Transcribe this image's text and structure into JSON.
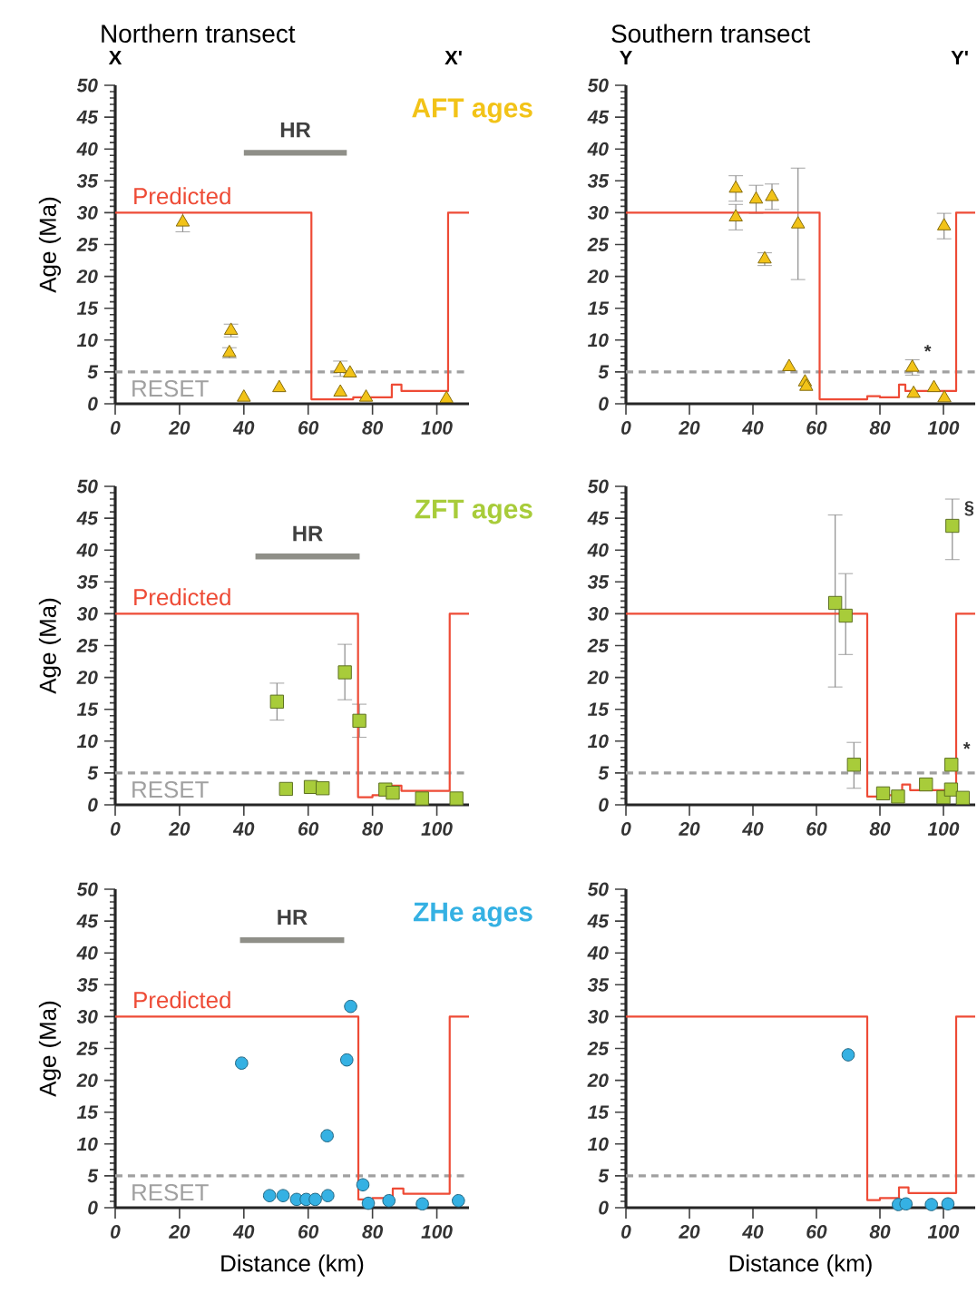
{
  "chart_data": [
    {
      "type": "scatter",
      "title": "Northern transect",
      "ylabel": "Age (Ma)",
      "xlim": [
        0,
        110
      ],
      "xticks": [
        0,
        20,
        40,
        60,
        80,
        100
      ],
      "ylim": [
        0,
        50
      ],
      "yticks": [
        0,
        5,
        10,
        15,
        20,
        25,
        30,
        35,
        40,
        45,
        50
      ],
      "marker": "triangle",
      "annotations": [
        "X",
        "X'"
      ],
      "ref_lines": [
        {
          "axis": "y",
          "value": 5,
          "label": "RESET",
          "color": "#a0a0a0",
          "line_style": "dashed"
        }
      ],
      "series": [
        {
          "type": "line",
          "marker": "none",
          "name": "Predicted",
          "color": "#ee4b36",
          "x": [
            0,
            61,
            61,
            74,
            74,
            86,
            86,
            89,
            89,
            103.5,
            103.5,
            110
          ],
          "values": [
            30,
            30,
            0.7,
            0.7,
            1,
            1,
            3,
            3,
            2,
            2,
            30,
            30
          ]
        },
        {
          "type": "line",
          "marker": "none",
          "name": "HR",
          "color": "#8f8f88",
          "x": [
            40,
            72
          ],
          "values": [
            39.4,
            39.4
          ]
        },
        {
          "name": "AFT ages",
          "color": "#f2c318",
          "x": [
            21,
            36,
            35.5,
            40,
            51,
            70,
            73,
            70,
            78,
            103
          ],
          "values": [
            28.5,
            11.5,
            8,
            1,
            2.5,
            5.5,
            4.8,
            1.8,
            1,
            0.8
          ],
          "errors": [
            1.5,
            1,
            0.8,
            null,
            null,
            1.2,
            null,
            null,
            null,
            null
          ]
        }
      ]
    },
    {
      "type": "scatter",
      "title": "Southern transect",
      "xlim": [
        0,
        110
      ],
      "xticks": [
        0,
        20,
        40,
        60,
        80,
        100
      ],
      "ylim": [
        0,
        50
      ],
      "yticks": [
        0,
        5,
        10,
        15,
        20,
        25,
        30,
        35,
        40,
        45,
        50
      ],
      "marker": "triangle",
      "annotations": [
        "Y",
        "Y'",
        {
          "text": "*",
          "x": 90.2,
          "y": 5.7
        }
      ],
      "ref_lines": [
        {
          "axis": "y",
          "value": 5,
          "color": "#a0a0a0",
          "line_style": "dashed"
        }
      ],
      "series": [
        {
          "type": "line",
          "marker": "none",
          "color": "#ee4b36",
          "x": [
            0,
            61,
            61,
            76,
            76,
            80,
            80,
            86,
            86,
            88,
            88,
            104,
            104,
            110
          ],
          "values": [
            30,
            30,
            0.7,
            0.7,
            1.2,
            1.2,
            1,
            1,
            3,
            3,
            2,
            2,
            30,
            30
          ]
        },
        {
          "color": "#f2c318",
          "x": [
            34.6,
            34.6,
            41,
            46,
            43.7,
            54.2,
            51.4,
            56.4,
            56.8,
            90.2,
            90.6,
            97,
            100.3,
            100.2
          ],
          "values": [
            33.8,
            29.3,
            32.1,
            32.5,
            22.7,
            28.2,
            5.8,
            3.4,
            2.7,
            5.7,
            1.6,
            2.5,
            0.9,
            27.9
          ],
          "errors": [
            2,
            2,
            2.2,
            2,
            1,
            [
              19.5,
              37
            ],
            null,
            null,
            null,
            1.2,
            null,
            null,
            null,
            2
          ]
        }
      ]
    },
    {
      "type": "scatter",
      "ylabel": "Age (Ma)",
      "xlim": [
        0,
        110
      ],
      "xticks": [
        0,
        20,
        40,
        60,
        80,
        100
      ],
      "ylim": [
        0,
        50
      ],
      "yticks": [
        0,
        5,
        10,
        15,
        20,
        25,
        30,
        35,
        40,
        45,
        50
      ],
      "marker": "square",
      "ref_lines": [
        {
          "axis": "y",
          "value": 5,
          "label": "RESET",
          "color": "#a0a0a0",
          "line_style": "dashed"
        }
      ],
      "series": [
        {
          "type": "line",
          "marker": "none",
          "name": "Predicted",
          "color": "#ee4b36",
          "x": [
            0,
            75.5,
            75.5,
            80,
            80,
            86,
            86,
            89,
            89,
            104,
            104,
            110
          ],
          "values": [
            30,
            30,
            1.2,
            1.2,
            1.5,
            1.5,
            3,
            3,
            2.2,
            2.2,
            30,
            30
          ]
        },
        {
          "type": "line",
          "marker": "none",
          "name": "HR",
          "color": "#8f8f88",
          "x": [
            43.6,
            76
          ],
          "values": [
            39,
            39
          ]
        },
        {
          "name": "ZFT ages",
          "color": "#a8cc3a",
          "x": [
            50.3,
            71.4,
            75.9,
            53.1,
            60.8,
            64.5,
            84,
            86.3,
            95.4,
            106.1
          ],
          "values": [
            16.2,
            20.8,
            13.2,
            2.5,
            2.8,
            2.6,
            2.4,
            1.9,
            1,
            1
          ],
          "errors": [
            2.9,
            [
              16.5,
              25.2
            ],
            [
              10.6,
              15.8
            ],
            null,
            null,
            null,
            null,
            null,
            null,
            null
          ]
        }
      ]
    },
    {
      "type": "scatter",
      "xlim": [
        0,
        110
      ],
      "xticks": [
        0,
        20,
        40,
        60,
        80,
        100
      ],
      "ylim": [
        0,
        50
      ],
      "yticks": [
        0,
        5,
        10,
        15,
        20,
        25,
        30,
        35,
        40,
        45,
        50
      ],
      "marker": "square",
      "annotations": [
        {
          "text": "§",
          "x": 102.8,
          "y": 43.8
        },
        {
          "text": "*",
          "x": 102.5,
          "y": 6.3
        }
      ],
      "ref_lines": [
        {
          "axis": "y",
          "value": 5,
          "color": "#a0a0a0",
          "line_style": "dashed"
        }
      ],
      "series": [
        {
          "type": "line",
          "marker": "none",
          "color": "#ee4b36",
          "x": [
            0,
            76,
            76,
            81,
            81,
            87,
            87,
            89.5,
            89.5,
            104,
            104,
            110
          ],
          "values": [
            30,
            30,
            1.3,
            1.3,
            1.5,
            1.5,
            3.2,
            3.2,
            2.3,
            2.3,
            30,
            30
          ]
        },
        {
          "color": "#a8cc3a",
          "x": [
            65.9,
            69.2,
            71.8,
            102.8,
            102.5,
            81,
            85.7,
            94.5,
            100,
            102.4,
            106.1
          ],
          "values": [
            31.7,
            29.7,
            6.3,
            43.8,
            6.3,
            1.8,
            1.3,
            3.2,
            1.2,
            2.4,
            1.1
          ],
          "errors": [
            [
              18.5,
              45.5
            ],
            [
              23.6,
              36.3
            ],
            [
              2.6,
              9.8
            ],
            [
              38.5,
              48
            ],
            null,
            null,
            null,
            null,
            null,
            null,
            null
          ]
        }
      ]
    },
    {
      "type": "scatter",
      "xlabel": "Distance (km)",
      "ylabel": "Age (Ma)",
      "xlim": [
        0,
        110
      ],
      "xticks": [
        0,
        20,
        40,
        60,
        80,
        100
      ],
      "ylim": [
        0,
        50
      ],
      "yticks": [
        0,
        5,
        10,
        15,
        20,
        25,
        30,
        35,
        40,
        45,
        50
      ],
      "marker": "circle",
      "ref_lines": [
        {
          "axis": "y",
          "value": 5,
          "label": "RESET",
          "color": "#a0a0a0",
          "line_style": "dashed"
        }
      ],
      "series": [
        {
          "type": "line",
          "marker": "none",
          "name": "Predicted",
          "color": "#ee4b36",
          "x": [
            0,
            75.6,
            75.6,
            80,
            80,
            86.3,
            86.3,
            89.6,
            89.6,
            104,
            104,
            110
          ],
          "values": [
            30,
            30,
            1.3,
            1.3,
            1.5,
            1.5,
            3,
            3,
            2.2,
            2.2,
            30,
            30
          ]
        },
        {
          "type": "line",
          "marker": "none",
          "name": "HR",
          "color": "#8f8f88",
          "x": [
            38.8,
            71.2
          ],
          "values": [
            42,
            42
          ]
        },
        {
          "name": "ZHe ages",
          "color": "#35b1e3",
          "x": [
            39.3,
            73.2,
            72,
            65.9,
            48,
            52.2,
            56.4,
            59.4,
            62.2,
            66.1,
            77,
            78.7,
            85.1,
            95.5,
            106.7
          ],
          "values": [
            22.7,
            31.6,
            23.2,
            11.3,
            1.9,
            1.9,
            1.3,
            1.3,
            1.3,
            1.9,
            3.6,
            0.7,
            1.1,
            0.6,
            1.1
          ]
        }
      ]
    },
    {
      "type": "scatter",
      "xlabel": "Distance (km)",
      "xlim": [
        0,
        110
      ],
      "xticks": [
        0,
        20,
        40,
        60,
        80,
        100
      ],
      "ylim": [
        0,
        50
      ],
      "yticks": [
        0,
        5,
        10,
        15,
        20,
        25,
        30,
        35,
        40,
        45,
        50
      ],
      "marker": "circle",
      "ref_lines": [
        {
          "axis": "y",
          "value": 5,
          "color": "#a0a0a0",
          "line_style": "dashed"
        }
      ],
      "series": [
        {
          "type": "line",
          "marker": "none",
          "color": "#ee4b36",
          "x": [
            0,
            76,
            76,
            80,
            80,
            86,
            86,
            89,
            89,
            104,
            104,
            110
          ],
          "values": [
            30,
            30,
            1.2,
            1.2,
            1.5,
            1.5,
            3.2,
            3.2,
            2.3,
            2.3,
            30,
            30
          ]
        },
        {
          "color": "#35b1e3",
          "x": [
            70,
            85.8,
            88.2,
            96.2,
            101.4
          ],
          "values": [
            24,
            0.5,
            0.6,
            0.5,
            0.6
          ]
        }
      ]
    }
  ]
}
